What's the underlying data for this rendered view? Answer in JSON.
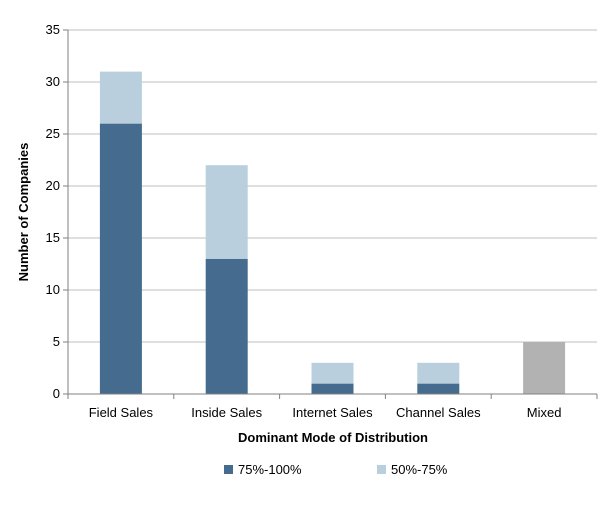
{
  "chart_data": {
    "type": "bar",
    "stacked": true,
    "categories": [
      "Field Sales",
      "Inside Sales",
      "Internet Sales",
      "Channel Sales",
      "Mixed"
    ],
    "series": [
      {
        "name": "75%-100%",
        "color": "#456b8e",
        "values": [
          26,
          13,
          1,
          1,
          0
        ]
      },
      {
        "name": "50%-75%",
        "color": "#b9cfdd",
        "values": [
          5,
          9,
          2,
          2,
          0
        ]
      },
      {
        "name": "",
        "color": "#b2b2b2",
        "values": [
          0,
          0,
          0,
          0,
          5
        ]
      }
    ],
    "xlabel": "Dominant Mode of Distribution",
    "ylabel": "Number of Companies",
    "ylim": [
      0,
      35
    ],
    "yticks": [
      "0",
      "5",
      "10",
      "15",
      "20",
      "25",
      "30",
      "35"
    ],
    "grid": true,
    "legend": "bottom-center",
    "legend_entries": [
      "75%-100%",
      "50%-75%"
    ]
  }
}
